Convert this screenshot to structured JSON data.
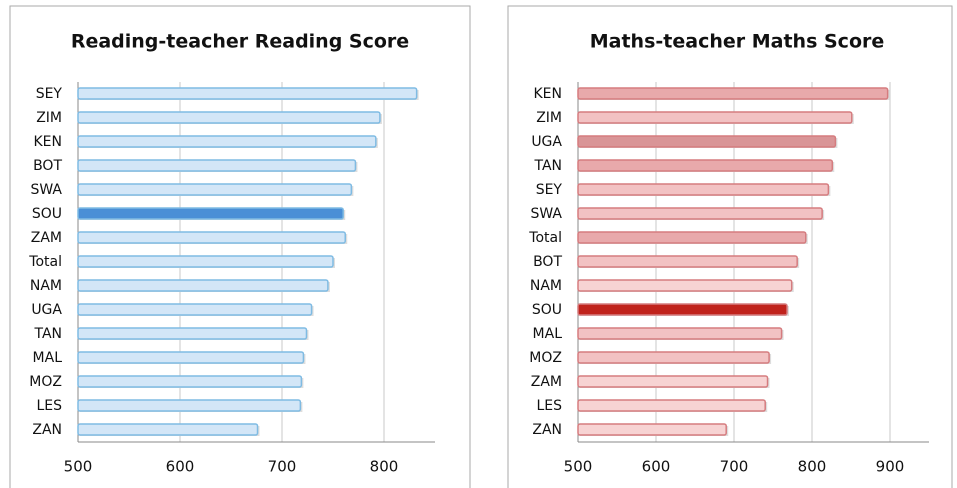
{
  "chart_data": [
    {
      "type": "barh",
      "title": "Reading-teacher Reading Score",
      "categories": [
        "SEY",
        "ZIM",
        "KEN",
        "BOT",
        "SWA",
        "SOU",
        "ZAM",
        "Total",
        "NAM",
        "UGA",
        "TAN",
        "MAL",
        "MOZ",
        "LES",
        "ZAN"
      ],
      "values": [
        832,
        796,
        792,
        772,
        768,
        760,
        762,
        750,
        745,
        729,
        724,
        721,
        719,
        718,
        676
      ],
      "colors": [
        "#d3e6f7",
        "#d3e6f7",
        "#d3e6f7",
        "#d3e6f7",
        "#d3e6f7",
        "#4a8fd6",
        "#d3e6f7",
        "#d3e6f7",
        "#d3e6f7",
        "#d3e6f7",
        "#d3e6f7",
        "#d3e6f7",
        "#d3e6f7",
        "#d3e6f7",
        "#d3e6f7"
      ],
      "edge": "#7fbbe3",
      "xlim": [
        500,
        850
      ],
      "xticks": [
        500,
        600,
        700,
        800
      ],
      "grid": true
    },
    {
      "type": "barh",
      "title": "Maths-teacher Maths Score",
      "categories": [
        "KEN",
        "ZIM",
        "UGA",
        "TAN",
        "SEY",
        "SWA",
        "Total",
        "BOT",
        "NAM",
        "SOU",
        "MAL",
        "MOZ",
        "ZAM",
        "LES",
        "ZAN"
      ],
      "values": [
        897,
        851,
        830,
        826,
        821,
        813,
        792,
        781,
        774,
        768,
        761,
        745,
        743,
        740,
        690
      ],
      "colors": [
        "#e8a9ab",
        "#f2c2c3",
        "#d99597",
        "#e8a9ab",
        "#f2c2c3",
        "#f2c2c3",
        "#e8a9ab",
        "#f2c2c3",
        "#f7d3d3",
        "#c0231c",
        "#f2c2c3",
        "#f2c2c3",
        "#f7d3d3",
        "#f7d3d3",
        "#f7d3d3"
      ],
      "edge": "#d57c7f",
      "xlim": [
        500,
        950
      ],
      "xticks": [
        500,
        600,
        700,
        800,
        900
      ],
      "grid": true
    }
  ]
}
